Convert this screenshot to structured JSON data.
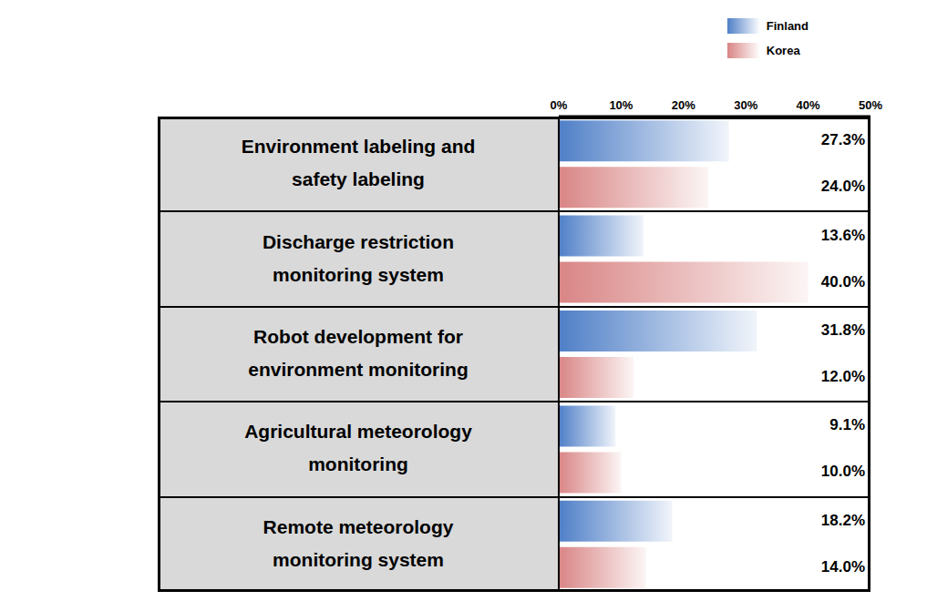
{
  "chart_data": {
    "type": "bar",
    "orientation": "horizontal",
    "categories": [
      "Environment labeling and safety labeling",
      "Discharge restriction monitoring system",
      "Robot development for environment monitoring",
      "Agricultural meteorology monitoring",
      "Remote meteorology monitoring system"
    ],
    "series": [
      {
        "name": "Finland",
        "color": "#4f7fc7",
        "values": [
          27.3,
          13.6,
          31.8,
          9.1,
          18.2
        ],
        "value_labels": [
          "27.3%",
          "13.6%",
          "31.8%",
          "9.1%",
          "18.2%"
        ]
      },
      {
        "name": "Korea",
        "color": "#d98585",
        "values": [
          24.0,
          40.0,
          12.0,
          10.0,
          14.0
        ],
        "value_labels": [
          "24.0%",
          "40.0%",
          "12.0%",
          "10.0%",
          "14.0%"
        ]
      }
    ],
    "xlim": [
      0,
      50
    ],
    "xticks": [
      {
        "value": 0,
        "label": "0%"
      },
      {
        "value": 10,
        "label": "10%"
      },
      {
        "value": 20,
        "label": "20%"
      },
      {
        "value": 30,
        "label": "30%"
      },
      {
        "value": 40,
        "label": "40%"
      },
      {
        "value": 50,
        "label": "50%"
      }
    ],
    "data_labels": true,
    "legend": "upper right",
    "grid": false
  }
}
